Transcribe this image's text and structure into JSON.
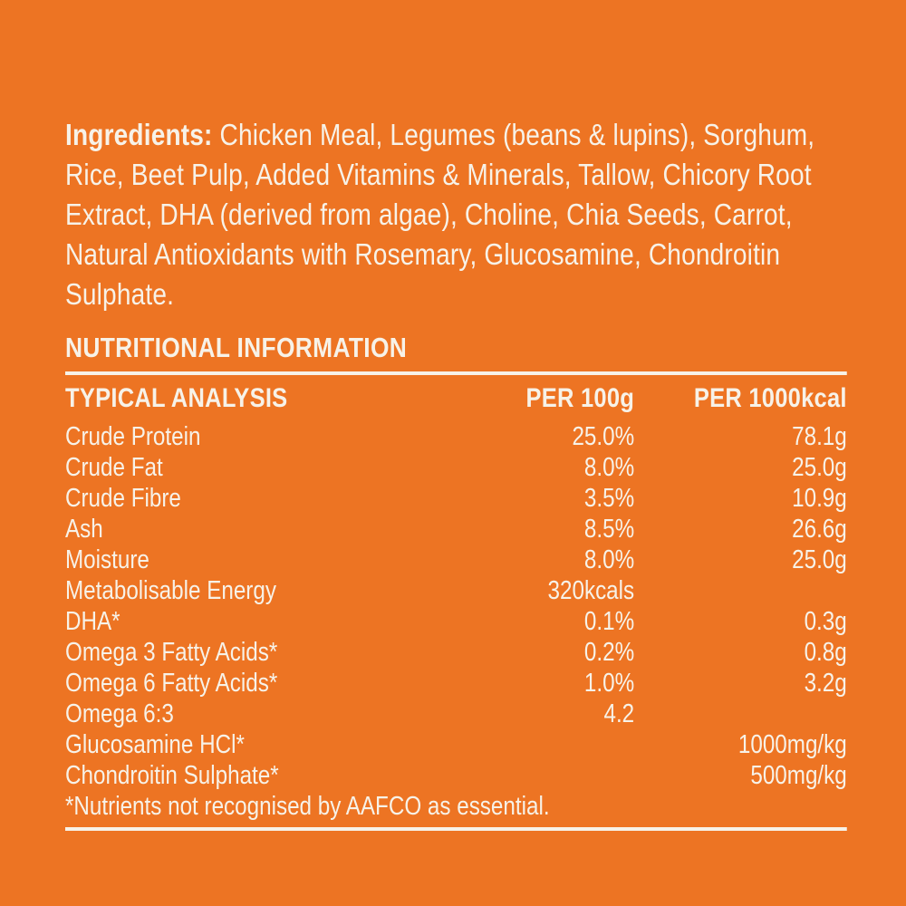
{
  "page": {
    "background_color": "#ED7423",
    "text_color": "#F7F2E8"
  },
  "ingredients": {
    "label": "Ingredients:",
    "text": " Chicken Meal, Legumes (beans & lupins), Sorghum, Rice, Beet Pulp, Added Vitamins & Minerals, Tallow, Chicory Root Extract, DHA (derived from algae), Choline, Chia Seeds, Carrot, Natural Antioxidants with Rosemary, Glucosamine, Chondroitin Sulphate."
  },
  "nutrition": {
    "section_title": "NUTRITIONAL INFORMATION",
    "table_header": {
      "analysis": "TYPICAL ANALYSIS",
      "per_100g": "PER 100g",
      "per_1000kcal": "PER 1000kcal"
    },
    "rows": [
      {
        "name": "Crude Protein",
        "per_100g": "25.0%",
        "per_1000kcal": "78.1g"
      },
      {
        "name": "Crude Fat",
        "per_100g": "8.0%",
        "per_1000kcal": "25.0g"
      },
      {
        "name": "Crude Fibre",
        "per_100g": "3.5%",
        "per_1000kcal": "10.9g"
      },
      {
        "name": "Ash",
        "per_100g": "8.5%",
        "per_1000kcal": "26.6g"
      },
      {
        "name": "Moisture",
        "per_100g": "8.0%",
        "per_1000kcal": "25.0g"
      },
      {
        "name": "Metabolisable Energy",
        "per_100g": "320kcals",
        "per_1000kcal": ""
      },
      {
        "name": "DHA*",
        "per_100g": "0.1%",
        "per_1000kcal": "0.3g"
      },
      {
        "name": "Omega 3 Fatty Acids*",
        "per_100g": "0.2%",
        "per_1000kcal": "0.8g"
      },
      {
        "name": "Omega 6 Fatty Acids*",
        "per_100g": "1.0%",
        "per_1000kcal": "3.2g"
      },
      {
        "name": "Omega 6:3",
        "per_100g": "4.2",
        "per_1000kcal": ""
      },
      {
        "name": "Glucosamine HCl*",
        "per_100g": "",
        "per_1000kcal": "1000mg/kg"
      },
      {
        "name": "Chondroitin Sulphate*",
        "per_100g": "",
        "per_1000kcal": "500mg/kg"
      }
    ],
    "footnote": "*Nutrients not recognised by AAFCO as essential."
  }
}
